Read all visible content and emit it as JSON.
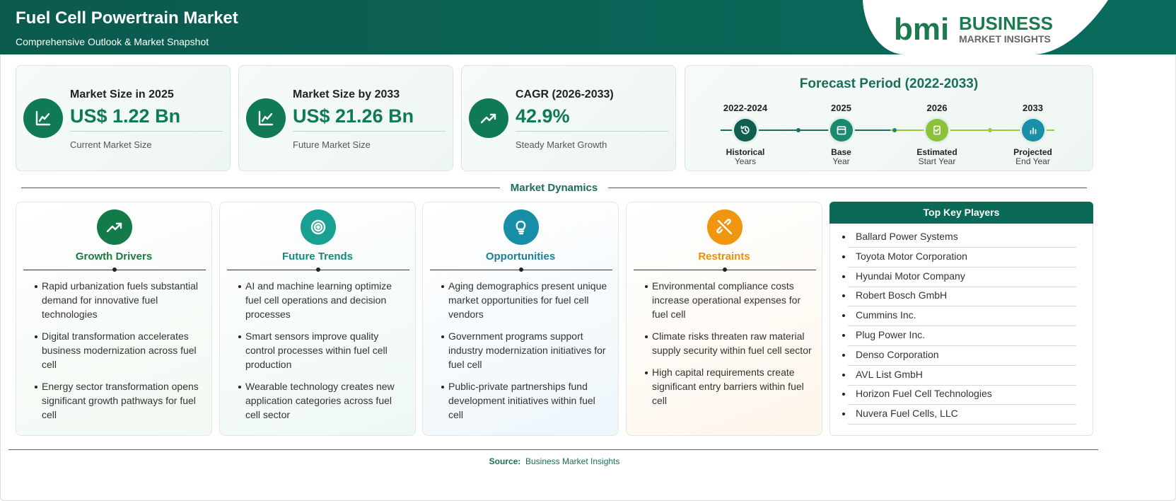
{
  "header": {
    "title": "Fuel Cell Powertrain Market",
    "subtitle": "Comprehensive Outlook & Market Snapshot",
    "logo": {
      "mark": "bmi",
      "name": "BUSINESS",
      "tagline": "MARKET INSIGHTS"
    }
  },
  "stats": [
    {
      "label": "Market Size in 2025",
      "value": "US$ 1.22 Bn",
      "caption": "Current Market Size"
    },
    {
      "label": "Market Size by 2033",
      "value": "US$ 21.26 Bn",
      "caption": "Future Market Size"
    },
    {
      "label": "CAGR (2026-2033)",
      "value": "42.9%",
      "caption": "Steady Market Growth"
    }
  ],
  "forecast": {
    "title": "Forecast Period (2022-2033)",
    "steps": [
      {
        "years": "2022-2024",
        "label": "Historical",
        "sub": "Years"
      },
      {
        "years": "2025",
        "label": "Base",
        "sub": "Year"
      },
      {
        "years": "2026",
        "label": "Estimated",
        "sub": "Start Year"
      },
      {
        "years": "2033",
        "label": "Projected",
        "sub": "End Year"
      }
    ]
  },
  "dynamics_title": "Market Dynamics",
  "dynamics": [
    {
      "title": "Growth Drivers",
      "items": [
        "Rapid urbanization fuels substantial demand for innovative fuel technologies",
        "Digital transformation accelerates business modernization across fuel cell",
        "Energy sector transformation opens significant growth pathways for fuel cell"
      ]
    },
    {
      "title": "Future Trends",
      "items": [
        "AI and machine learning optimize fuel cell operations and decision processes",
        "Smart sensors improve quality control processes within fuel cell production",
        "Wearable technology creates new application categories across fuel cell sector"
      ]
    },
    {
      "title": "Opportunities",
      "items": [
        "Aging demographics present unique market opportunities for fuel cell vendors",
        "Government programs support industry modernization initiatives for fuel cell",
        "Public-private partnerships fund development initiatives within fuel cell"
      ]
    },
    {
      "title": "Restraints",
      "items": [
        "Environmental compliance costs increase operational expenses for fuel cell",
        "Climate risks threaten raw material supply security within fuel cell sector",
        "High capital requirements create significant entry barriers within fuel cell"
      ]
    }
  ],
  "key_players": {
    "title": "Top Key Players",
    "items": [
      "Ballard Power Systems",
      "Toyota Motor Corporation",
      "Hyundai Motor Company",
      "Robert Bosch GmbH",
      "Cummins Inc.",
      "Plug Power Inc.",
      "Denso Corporation",
      "AVL List GmbH",
      "Horizon Fuel Cell Technologies",
      "Nuvera Fuel Cells, LLC"
    ]
  },
  "footer": {
    "source_label": "Source:",
    "source": "Business Market Insights"
  }
}
